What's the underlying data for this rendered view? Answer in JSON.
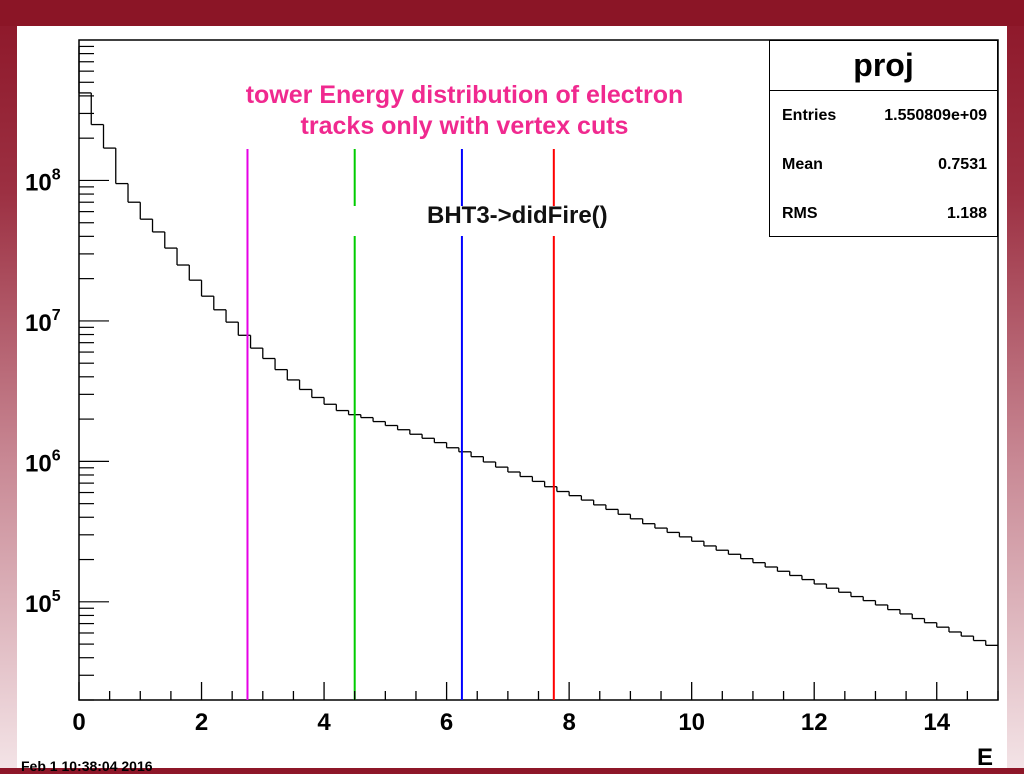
{
  "chart_data": {
    "type": "histogram",
    "title": "",
    "xlabel": "E",
    "ylabel": "",
    "yscale": "log",
    "xlim": [
      0,
      15
    ],
    "ylim": [
      20000,
      1000000000
    ],
    "x_ticks": [
      "0",
      "2",
      "4",
      "6",
      "8",
      "10",
      "12",
      "14"
    ],
    "y_ticks": [
      {
        "base": "10",
        "exp": "5",
        "value": 100000
      },
      {
        "base": "10",
        "exp": "6",
        "value": 1000000
      },
      {
        "base": "10",
        "exp": "7",
        "value": 10000000
      },
      {
        "base": "10",
        "exp": "8",
        "value": 100000000
      }
    ],
    "bin_width": 0.2,
    "counts": [
      420000000,
      250000000,
      170000000,
      95000000,
      70000000,
      53000000,
      43000000,
      33000000,
      25000000,
      19500000,
      15000000,
      12000000,
      9800000,
      7900000,
      6400000,
      5400000,
      4500000,
      3800000,
      3250000,
      2850000,
      2550000,
      2300000,
      2150000,
      2050000,
      1920000,
      1800000,
      1680000,
      1560000,
      1460000,
      1360000,
      1250000,
      1170000,
      1080000,
      990000,
      910000,
      840000,
      780000,
      720000,
      660000,
      610000,
      570000,
      530000,
      490000,
      455000,
      420000,
      390000,
      360000,
      335000,
      312000,
      290000,
      270000,
      250000,
      233000,
      218000,
      203000,
      190000,
      177000,
      165000,
      154000,
      144000,
      134000,
      125000,
      117000,
      109000,
      102000,
      95000,
      88000,
      82000,
      76000,
      71000,
      66000,
      61000,
      57000,
      53000,
      49000
    ],
    "cut_lines": [
      {
        "x": 2.75,
        "color": "#e600e6"
      },
      {
        "x": 4.5,
        "color": "#00cc00"
      },
      {
        "x": 6.25,
        "color": "#0000ff"
      },
      {
        "x": 7.75,
        "color": "#ff0000"
      }
    ]
  },
  "stats": {
    "name": "proj",
    "entries_label": "Entries",
    "entries_value": "1.550809e+09",
    "mean_label": "Mean",
    "mean_value": "0.7531",
    "rms_label": "RMS",
    "rms_value": "1.188"
  },
  "annotation": {
    "line1": "tower Energy distribution of electron",
    "line2": "tracks only with vertex cuts"
  },
  "trigger_label": "BHT3->didFire()",
  "timestamp": "Feb 1 10:38:04 2016"
}
